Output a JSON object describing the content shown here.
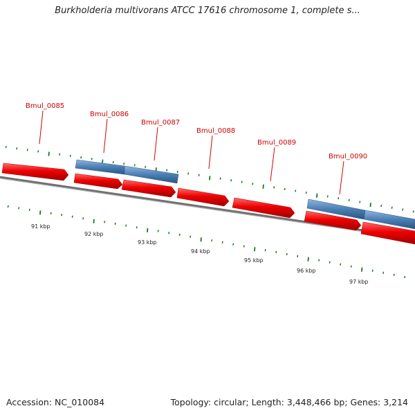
{
  "header": {
    "title": "Burkholderia multivorans ATCC 17616 chromosome 1, complete s..."
  },
  "footer": {
    "accession": "Accession: NC_010084",
    "stats": "Topology: circular; Length: 3,448,466 bp; Genes: 3,214"
  },
  "colors": {
    "forward_gene": "#e80000",
    "reverse_gene": "#4a7fb5",
    "backbone": "#808080",
    "tick": "#1a7a1a",
    "label": "#cc0000"
  },
  "gene_labels": [
    {
      "name": "Bmul_0085"
    },
    {
      "name": "Bmul_0086"
    },
    {
      "name": "Bmul_0087"
    },
    {
      "name": "Bmul_0088"
    },
    {
      "name": "Bmul_0089"
    },
    {
      "name": "Bmul_0090"
    }
  ],
  "kbp_labels": [
    "91 kbp",
    "92 kbp",
    "93 kbp",
    "94 kbp",
    "95 kbp",
    "96 kbp",
    "97 kbp"
  ]
}
